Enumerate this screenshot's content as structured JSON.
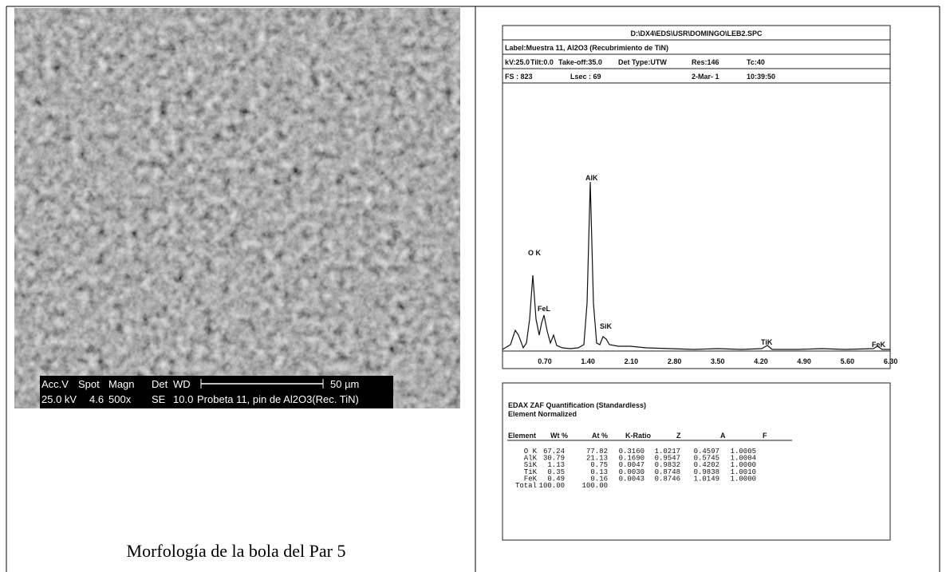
{
  "left": {
    "micrograph_info": {
      "labels": [
        "Acc.V",
        "Spot",
        "Magn",
        "Det",
        "WD"
      ],
      "scale": "50 µm",
      "values": [
        "25.0 kV",
        "4.6",
        "500x",
        "SE",
        "10.0",
        "Probeta 11, pin de Al2O3(Rec. TiN)"
      ]
    },
    "caption": "Morfología de la bola del Par 5"
  },
  "right": {
    "header": {
      "path": "D:\\DX4\\EDS\\USR\\DOMINGO\\LEB2.SPC",
      "label": "Label:Muestra 11, Al2O3 (Recubrimiento de TiN)",
      "settings": [
        "kV:25.0",
        "Tilt:0.0",
        "Take-off:35.0",
        "Det Type:UTW",
        "Res:146",
        "Tc:40"
      ],
      "acquisition": [
        "FS : 823",
        "Lsec : 69",
        "2-Mar- 1",
        "10:39:50"
      ]
    },
    "spectrum": {
      "peaks": [
        "O K",
        "FeL",
        "AlK",
        "SiK",
        "TiK",
        "FeK"
      ],
      "axis_labels": [
        "0.70",
        "1.40",
        "2.10",
        "2.80",
        "3.50",
        "4.20",
        "4.90",
        "5.60",
        "6.30"
      ]
    },
    "quant": {
      "title": "EDAX ZAF Quantification (Standardless)",
      "subtitle": "Element Normalized",
      "columns": [
        "Element",
        "Wt %",
        "At %",
        "K-Ratio",
        "Z",
        "A",
        "F"
      ],
      "rows": [
        [
          "O K",
          "67.24",
          "77.82",
          "0.3160",
          "1.0217",
          "0.4597",
          "1.0005"
        ],
        [
          "AlK",
          "30.79",
          "21.13",
          "0.1690",
          "0.9547",
          "0.5745",
          "1.0004"
        ],
        [
          "SiK",
          "1.13",
          "0.75",
          "0.0047",
          "0.9832",
          "0.4202",
          "1.0000"
        ],
        [
          "TiK",
          "0.35",
          "0.13",
          "0.0030",
          "0.8748",
          "0.9838",
          "1.0010"
        ],
        [
          "FeK",
          "0.49",
          "0.16",
          "0.0043",
          "0.8746",
          "1.0149",
          "1.0000"
        ],
        [
          "Total",
          "100.00",
          "100.00"
        ]
      ]
    }
  }
}
